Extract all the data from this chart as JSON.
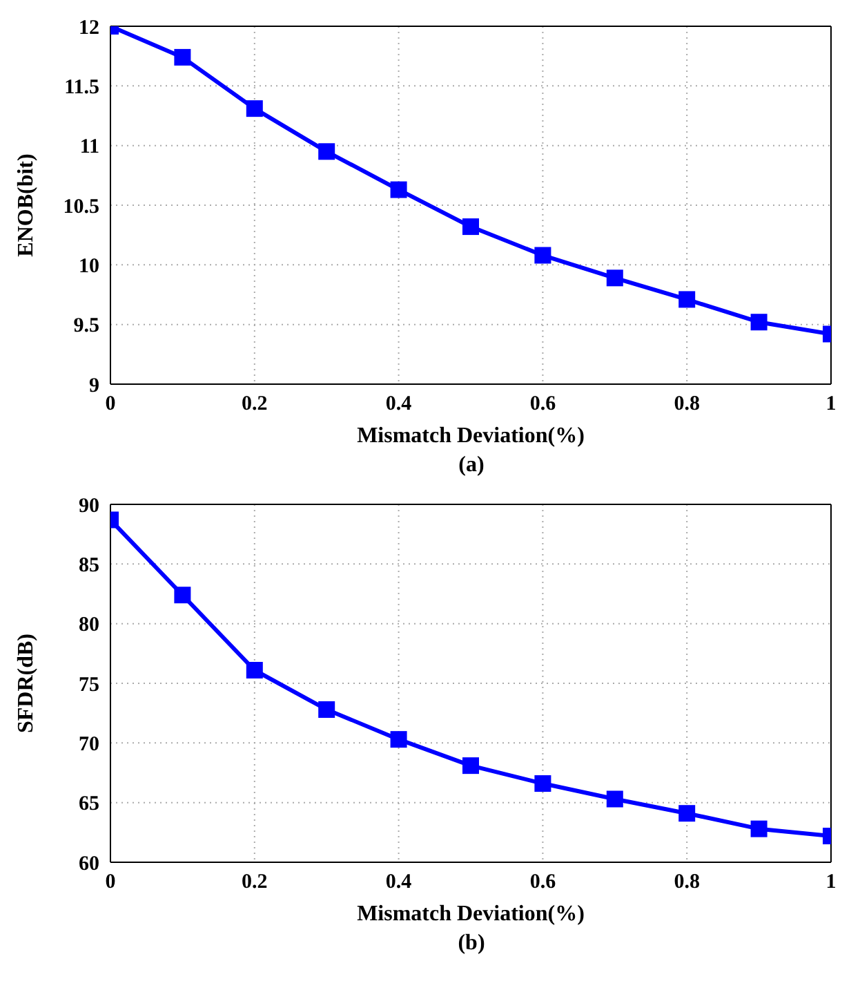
{
  "chart_data": [
    {
      "type": "line",
      "xlabel": "Mismatch Deviation(%)",
      "ylabel": "ENOB(bit)",
      "annotations": [
        "(a)"
      ],
      "x": [
        0,
        0.1,
        0.2,
        0.3,
        0.4,
        0.5,
        0.6,
        0.7,
        0.8,
        0.9,
        1
      ],
      "series": [
        {
          "color": "#0000ff",
          "values": [
            12,
            11.74,
            11.31,
            10.95,
            10.63,
            10.32,
            10.08,
            9.89,
            9.71,
            9.52,
            9.42
          ]
        }
      ],
      "xlim": [
        0,
        1
      ],
      "xticks": [
        0,
        0.2,
        0.4,
        0.6,
        0.8,
        1
      ],
      "ylim": [
        9,
        12
      ],
      "yticks": [
        9,
        9.5,
        10,
        10.5,
        11,
        11.5,
        12
      ],
      "grid": true,
      "marker": "square",
      "line_style": "solid"
    },
    {
      "type": "line",
      "xlabel": "Mismatch Deviation(%)",
      "ylabel": "SFDR(dB)",
      "annotations": [
        "(b)"
      ],
      "x": [
        0,
        0.1,
        0.2,
        0.3,
        0.4,
        0.5,
        0.6,
        0.7,
        0.8,
        0.9,
        1
      ],
      "series": [
        {
          "color": "#0000ff",
          "values": [
            88.7,
            82.4,
            76.1,
            72.8,
            70.3,
            68.1,
            66.6,
            65.3,
            64.1,
            62.8,
            62.2
          ]
        }
      ],
      "xlim": [
        0,
        1
      ],
      "xticks": [
        0,
        0.2,
        0.4,
        0.6,
        0.8,
        1
      ],
      "ylim": [
        60,
        90
      ],
      "yticks": [
        60,
        65,
        70,
        75,
        80,
        85,
        90
      ],
      "grid": true,
      "marker": "square",
      "line_style": "solid"
    }
  ]
}
